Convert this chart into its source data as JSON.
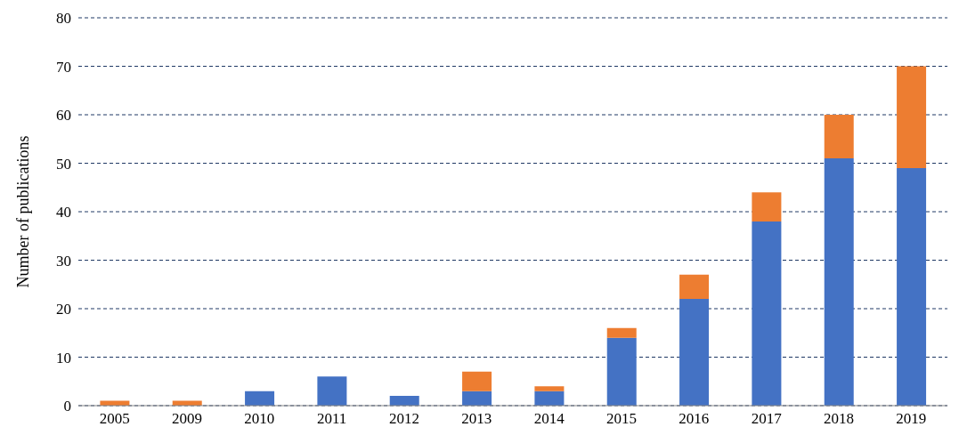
{
  "chart_data": {
    "type": "bar",
    "ylabel": "Number of publications",
    "categories": [
      "2005",
      "2009",
      "2010",
      "2011",
      "2012",
      "2013",
      "2014",
      "2015",
      "2016",
      "2017",
      "2018",
      "2019"
    ],
    "series": [
      {
        "color": "#4472c4",
        "values": [
          0,
          0,
          3,
          6,
          2,
          3,
          3,
          14,
          22,
          38,
          51,
          49
        ]
      },
      {
        "color": "#ed7d31",
        "values": [
          1,
          1,
          0,
          0,
          0,
          4,
          1,
          2,
          5,
          6,
          9,
          21
        ]
      }
    ],
    "stacked": true,
    "ylim": [
      0,
      80
    ],
    "yticks": [
      0,
      10,
      20,
      30,
      40,
      50,
      60,
      70,
      80
    ],
    "grid": "y",
    "legend": false
  }
}
